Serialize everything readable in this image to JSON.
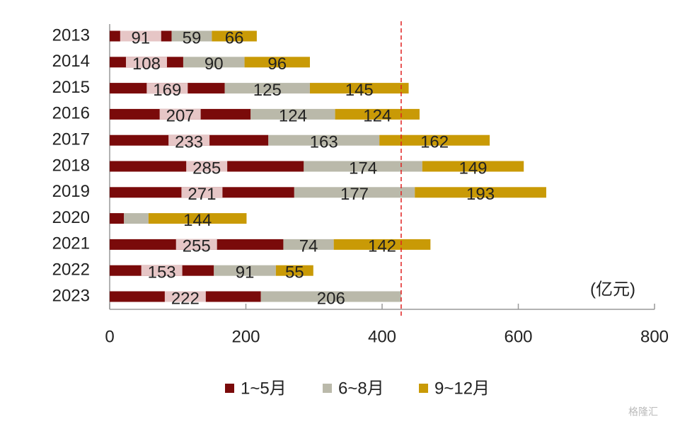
{
  "chart_data": {
    "type": "bar",
    "orientation": "horizontal",
    "stacked": true,
    "categories": [
      "2013",
      "2014",
      "2015",
      "2016",
      "2017",
      "2018",
      "2019",
      "2020",
      "2021",
      "2022",
      "2023"
    ],
    "series": [
      {
        "name": "1~5月",
        "color": "#7a0a0a",
        "values": [
          91,
          108,
          169,
          207,
          233,
          285,
          271,
          21,
          255,
          153,
          222
        ],
        "value_labels": [
          "91",
          "108",
          "169",
          "207",
          "233",
          "285",
          "271",
          null,
          "255",
          "153",
          "222"
        ]
      },
      {
        "name": "6~8月",
        "color": "#bab9aa",
        "values": [
          59,
          90,
          125,
          124,
          163,
          174,
          177,
          36,
          74,
          91,
          206
        ],
        "value_labels": [
          "59",
          "90",
          "125",
          "124",
          "163",
          "174",
          "177",
          null,
          "74",
          "91",
          "206"
        ]
      },
      {
        "name": "9~12月",
        "color": "#c99a06",
        "values": [
          66,
          96,
          145,
          124,
          162,
          149,
          193,
          144,
          142,
          55,
          null
        ],
        "value_labels": [
          "66",
          "96",
          "145",
          "124",
          "162",
          "149",
          "193",
          "144",
          "142",
          "55",
          null
        ]
      }
    ],
    "xlim": [
      0,
      800
    ],
    "xticks": [
      0,
      200,
      400,
      600,
      800
    ],
    "reference_line": 428,
    "reference_color": "#e02020",
    "unit_label": "(亿元)",
    "legend": "bottom",
    "watermark": "格隆汇"
  }
}
